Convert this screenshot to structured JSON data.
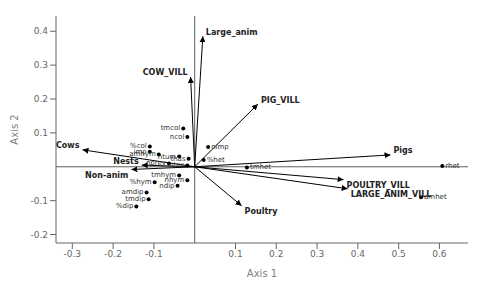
{
  "chart_data": {
    "type": "biplot",
    "xlabel": "Axis 1",
    "ylabel": "Axis 2",
    "xlim": [
      -0.34,
      0.67
    ],
    "ylim": [
      -0.225,
      0.445
    ],
    "xticks": [
      -0.3,
      -0.2,
      -0.1,
      0.1,
      0.2,
      0.3,
      0.4,
      0.5,
      0.6
    ],
    "yticks": [
      -0.2,
      -0.1,
      0.1,
      0.2,
      0.3,
      0.4
    ],
    "series": [
      {
        "type": "arrow",
        "color": "black",
        "points": [
          {
            "label": "Large_anim",
            "x": 0.02,
            "y": 0.385
          },
          {
            "label": "COW_VILL",
            "x": -0.01,
            "y": 0.265
          },
          {
            "label": "PIG_VILL",
            "x": 0.155,
            "y": 0.185
          },
          {
            "label": "Cows",
            "x": -0.275,
            "y": 0.05
          },
          {
            "label": "Nests",
            "x": -0.13,
            "y": 0.005
          },
          {
            "label": "Non-anim",
            "x": -0.155,
            "y": -0.008
          },
          {
            "label": "Pigs",
            "x": 0.48,
            "y": 0.035
          },
          {
            "label": "POULTRY_VILL",
            "x": 0.365,
            "y": -0.038
          },
          {
            "label": "LARGE_ANIM_VILL",
            "x": 0.375,
            "y": -0.065
          },
          {
            "label": "Poultry",
            "x": 0.115,
            "y": -0.115
          }
        ]
      },
      {
        "type": "scatter",
        "color": "black",
        "points": [
          {
            "label": "tmcol",
            "x": -0.028,
            "y": 0.113
          },
          {
            "label": "ncol",
            "x": -0.018,
            "y": 0.088
          },
          {
            "label": "%col",
            "x": -0.11,
            "y": 0.06
          },
          {
            "label": "imp",
            "x": -0.11,
            "y": 0.044
          },
          {
            "label": "amhym",
            "x": -0.088,
            "y": 0.036
          },
          {
            "label": "ntum",
            "x": -0.038,
            "y": 0.03
          },
          {
            "label": "thas",
            "x": -0.015,
            "y": 0.024
          },
          {
            "label": "%het",
            "x": 0.022,
            "y": 0.02
          },
          {
            "label": "nprey",
            "x": -0.063,
            "y": 0.01
          },
          {
            "label": "ntax",
            "x": -0.018,
            "y": 0.004
          },
          {
            "label": "nimp",
            "x": 0.033,
            "y": 0.058
          },
          {
            "label": "tmhet",
            "x": 0.128,
            "y": -0.002
          },
          {
            "label": "tmhym",
            "x": -0.038,
            "y": -0.026
          },
          {
            "label": "nhym",
            "x": -0.018,
            "y": -0.04
          },
          {
            "label": "%hym",
            "x": -0.098,
            "y": -0.046
          },
          {
            "label": "ndip",
            "x": -0.042,
            "y": -0.056
          },
          {
            "label": "amdip",
            "x": -0.118,
            "y": -0.076
          },
          {
            "label": "tmdip",
            "x": -0.113,
            "y": -0.096
          },
          {
            "label": "%dip",
            "x": -0.143,
            "y": -0.117
          },
          {
            "label": "rhet",
            "x": 0.607,
            "y": 0.002
          },
          {
            "label": "amhet",
            "x": 0.555,
            "y": -0.09
          }
        ]
      }
    ]
  }
}
